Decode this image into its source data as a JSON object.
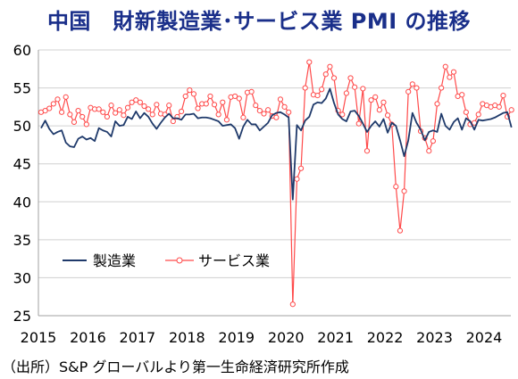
{
  "title": "中国　財新製造業･サービス業 PMI の推移",
  "source": "（出所）S&P グローバルより第一生命経済研究所作成",
  "chart_data": {
    "type": "line",
    "ylim": [
      25,
      60
    ],
    "yticks": [
      25,
      30,
      35,
      40,
      45,
      50,
      55,
      60
    ],
    "xticks": [
      "2015",
      "2016",
      "2017",
      "2018",
      "2019",
      "2020",
      "2021",
      "2022",
      "2023",
      "2024"
    ],
    "x_start": "2015-01",
    "grid": "horizontal",
    "legend_position": "lower-left",
    "series": [
      {
        "name": "製造業",
        "color": "#1f3a6b",
        "marker": "none",
        "values": [
          49.7,
          50.7,
          49.6,
          48.9,
          49.2,
          49.4,
          47.8,
          47.3,
          47.2,
          48.3,
          48.6,
          48.2,
          48.4,
          48.0,
          49.7,
          49.4,
          49.2,
          48.6,
          50.6,
          50.0,
          50.1,
          51.2,
          50.9,
          51.9,
          51.0,
          51.7,
          51.2,
          50.3,
          49.6,
          50.4,
          51.1,
          51.6,
          51.0,
          51.0,
          50.8,
          51.5,
          51.5,
          51.6,
          51.0,
          51.1,
          51.1,
          51.0,
          50.8,
          50.6,
          50.0,
          50.1,
          50.2,
          49.7,
          48.3,
          49.9,
          50.8,
          50.2,
          50.2,
          49.4,
          49.9,
          50.4,
          51.4,
          51.7,
          51.8,
          51.5,
          51.1,
          40.3,
          50.1,
          49.4,
          50.7,
          51.2,
          52.8,
          53.1,
          53.0,
          53.6,
          54.9,
          53.0,
          51.5,
          50.9,
          50.6,
          51.9,
          52.0,
          51.3,
          50.3,
          49.2,
          50.0,
          50.6,
          49.9,
          50.9,
          49.1,
          50.4,
          50.0,
          48.1,
          46.0,
          48.1,
          51.7,
          50.4,
          49.5,
          48.1,
          49.2,
          49.4,
          49.2,
          51.6,
          50.0,
          49.5,
          50.5,
          51.0,
          49.5,
          51.0,
          50.6,
          49.5,
          50.8,
          50.7,
          50.8,
          50.9,
          51.1,
          51.4,
          51.7,
          51.8,
          49.8
        ]
      },
      {
        "name": "サービス業",
        "color": "#ff4a4a",
        "marker": "circle",
        "values": [
          51.8,
          52.0,
          52.3,
          52.9,
          53.5,
          51.8,
          53.8,
          51.5,
          50.5,
          52.0,
          51.2,
          50.2,
          52.4,
          52.2,
          52.2,
          51.8,
          51.2,
          52.7,
          51.7,
          52.1,
          51.4,
          52.4,
          53.1,
          53.4,
          53.1,
          52.6,
          52.2,
          51.5,
          52.8,
          51.6,
          51.5,
          52.7,
          50.6,
          51.2,
          51.9,
          53.9,
          54.7,
          54.2,
          52.3,
          52.9,
          52.9,
          53.9,
          52.8,
          51.5,
          53.1,
          50.8,
          53.8,
          53.9,
          53.6,
          51.1,
          54.4,
          54.5,
          52.7,
          52.0,
          51.6,
          52.1,
          51.3,
          51.1,
          53.5,
          52.5,
          51.8,
          26.5,
          43.0,
          44.4,
          55.0,
          58.4,
          54.1,
          54.0,
          54.8,
          56.8,
          57.8,
          56.3,
          52.0,
          51.5,
          54.3,
          56.3,
          55.1,
          50.3,
          54.9,
          46.7,
          53.4,
          53.8,
          52.1,
          53.1,
          51.4,
          50.2,
          42.0,
          36.2,
          41.4,
          54.5,
          55.5,
          55.0,
          49.3,
          48.4,
          46.7,
          48.0,
          52.9,
          55.0,
          57.8,
          56.4,
          57.1,
          53.9,
          54.1,
          51.8,
          50.2,
          50.4,
          51.5,
          52.9,
          52.7,
          52.5,
          52.7,
          52.5,
          54.0,
          51.2,
          52.1
        ]
      }
    ]
  }
}
